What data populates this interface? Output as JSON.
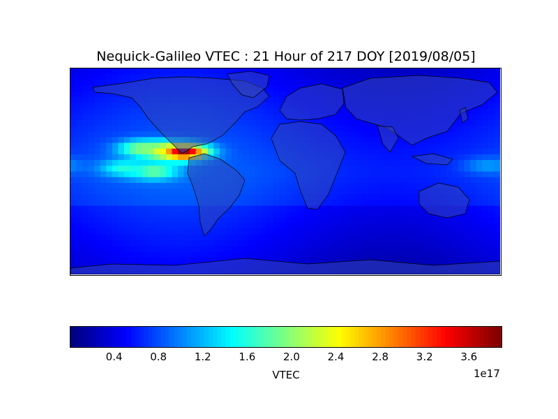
{
  "chart_data": {
    "type": "heatmap",
    "title": "Nequick-Galileo VTEC : 21 Hour of 217 DOY [2019/08/05]",
    "colorbar": {
      "label": "VTEC",
      "multiplier": "1e17",
      "range": [
        0.0,
        3.9
      ],
      "ticks": [
        "0.4",
        "0.8",
        "1.2",
        "1.6",
        "2.0",
        "2.4",
        "2.8",
        "3.2",
        "3.6"
      ],
      "colormap": "jet"
    },
    "extent": {
      "lon": [
        -180,
        180
      ],
      "lat": [
        -90,
        90
      ]
    },
    "features": [
      {
        "lon": -85,
        "lat": 17,
        "value": 3.8
      },
      {
        "lon": -100,
        "lat": 18,
        "value": 2.4
      },
      {
        "lon": -120,
        "lat": 20,
        "value": 2.0
      },
      {
        "lon": -110,
        "lat": 0,
        "value": 1.9
      },
      {
        "lon": -135,
        "lat": 3,
        "value": 1.6
      },
      {
        "lon": 170,
        "lat": 5,
        "value": 1.1
      }
    ]
  }
}
